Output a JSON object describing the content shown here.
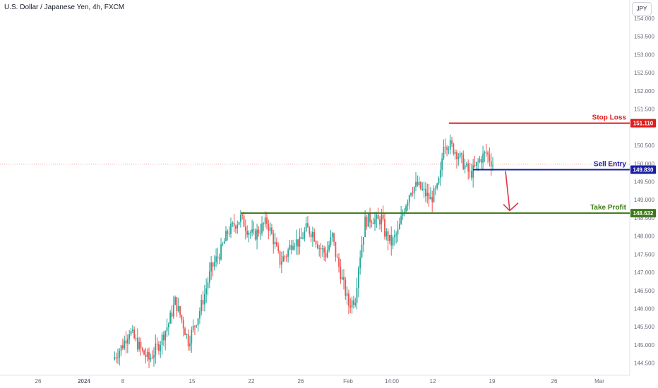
{
  "header": {
    "title": "U.S. Dollar / Japanese Yen, 4h, FXCM",
    "currency_button": "JPY"
  },
  "colors": {
    "up": "#26a69a",
    "down": "#ef5350",
    "stop_loss": "#e01e1e",
    "sell_entry": "#1b1fa3",
    "take_profit": "#3c7a14",
    "last_price_line": "#f0a0a0",
    "arrow": "#e0344a"
  },
  "chart_data": {
    "type": "candlestick",
    "symbol": "USDJPY",
    "timeframe": "4h",
    "ylim": [
      144.2,
      154.3
    ],
    "y_ticks": [
      "154.000",
      "153.500",
      "153.000",
      "152.500",
      "152.000",
      "151.500",
      "150.500",
      "150.000",
      "149.500",
      "149.000",
      "148.500",
      "148.000",
      "147.500",
      "147.000",
      "146.500",
      "146.000",
      "145.500",
      "145.000",
      "144.500"
    ],
    "x_ticks": [
      "26",
      "2024",
      "8",
      "15",
      "22",
      "26",
      "Feb",
      "14:00",
      "12",
      "19",
      "26",
      "Mar"
    ],
    "last_price": 149.98,
    "levels": [
      {
        "name": "Stop Loss",
        "value": 151.11,
        "tag": "151.110",
        "x_from": "2024-02-12",
        "x_to": "axis"
      },
      {
        "name": "Sell Entry",
        "value": 149.83,
        "tag": "149.830",
        "x_from": "2024-02-15",
        "x_to": "axis"
      },
      {
        "name": "Take Profit",
        "value": 148.632,
        "tag": "148.632",
        "x_from": "2024-01-19",
        "x_to": "axis"
      }
    ],
    "projection_arrow": {
      "from": 149.83,
      "to": 148.7,
      "direction": "down"
    },
    "price_anchors": [
      [
        0,
        144.6
      ],
      [
        6,
        145.0
      ],
      [
        10,
        145.4
      ],
      [
        14,
        145.1
      ],
      [
        18,
        144.8
      ],
      [
        22,
        144.6
      ],
      [
        28,
        145.0
      ],
      [
        34,
        145.6
      ],
      [
        38,
        146.2
      ],
      [
        42,
        145.7
      ],
      [
        46,
        145.1
      ],
      [
        52,
        145.8
      ],
      [
        56,
        146.4
      ],
      [
        60,
        147.1
      ],
      [
        66,
        147.6
      ],
      [
        70,
        148.1
      ],
      [
        74,
        148.3
      ],
      [
        78,
        148.5
      ],
      [
        82,
        148.2
      ],
      [
        86,
        148.0
      ],
      [
        90,
        148.2
      ],
      [
        94,
        148.4
      ],
      [
        98,
        147.9
      ],
      [
        102,
        147.3
      ],
      [
        106,
        147.5
      ],
      [
        110,
        147.9
      ],
      [
        114,
        147.8
      ],
      [
        118,
        148.2
      ],
      [
        122,
        148.1
      ],
      [
        126,
        147.7
      ],
      [
        130,
        147.5
      ],
      [
        134,
        148.0
      ],
      [
        136,
        147.5
      ],
      [
        140,
        146.8
      ],
      [
        144,
        146.1
      ],
      [
        148,
        146.3
      ],
      [
        150,
        147.2
      ],
      [
        154,
        148.4
      ],
      [
        158,
        148.5
      ],
      [
        162,
        148.4
      ],
      [
        164,
        148.5
      ],
      [
        166,
        148.1
      ],
      [
        170,
        147.8
      ],
      [
        174,
        148.1
      ],
      [
        178,
        148.8
      ],
      [
        182,
        149.3
      ],
      [
        186,
        149.4
      ],
      [
        190,
        149.2
      ],
      [
        194,
        149.0
      ],
      [
        198,
        149.3
      ],
      [
        200,
        149.7
      ],
      [
        202,
        150.6
      ],
      [
        206,
        150.5
      ],
      [
        210,
        150.3
      ],
      [
        214,
        150.0
      ],
      [
        218,
        149.7
      ],
      [
        220,
        149.8
      ],
      [
        224,
        150.1
      ],
      [
        228,
        150.3
      ],
      [
        232,
        149.98
      ]
    ]
  }
}
